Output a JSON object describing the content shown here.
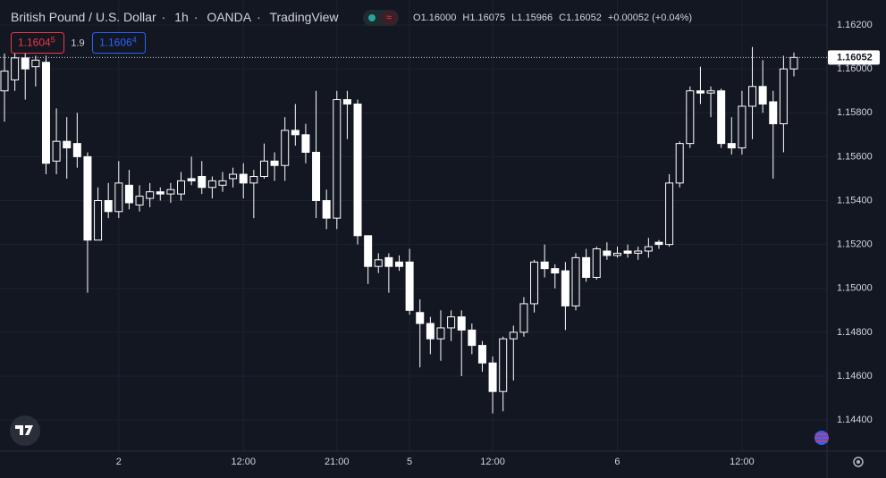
{
  "chart_data": {
    "type": "candlestick",
    "title": "British Pound / U.S. Dollar",
    "interval": "1h",
    "exchange": "OANDA",
    "source": "TradingView",
    "legend": {
      "o_prefix": "O",
      "o": "1.16000",
      "h_prefix": "H",
      "h": "1.16075",
      "l_prefix": "L",
      "l": "1.15966",
      "c_prefix": "C",
      "c": "1.16052",
      "change": "+0.00052 (+0.04%)"
    },
    "sell": {
      "main": "1.1604",
      "pip": "5"
    },
    "spread": "1.9",
    "buy": {
      "main": "1.1606",
      "pip": "4"
    },
    "last_price": {
      "value": 1.16052,
      "label": "1.16052"
    },
    "up_fill": "#131722",
    "down_fill": "#ffffff",
    "border_color": "#ffffff",
    "grid": true,
    "ylim": [
      1.14258,
      1.16314
    ],
    "yticks": [
      {
        "value": 1.144,
        "label": "1.14400"
      },
      {
        "value": 1.146,
        "label": "1.14600"
      },
      {
        "value": 1.148,
        "label": "1.14800"
      },
      {
        "value": 1.15,
        "label": "1.15000"
      },
      {
        "value": 1.152,
        "label": "1.15200"
      },
      {
        "value": 1.154,
        "label": "1.15400"
      },
      {
        "value": 1.156,
        "label": "1.15600"
      },
      {
        "value": 1.158,
        "label": "1.15800"
      },
      {
        "value": 1.16,
        "label": "1.16000"
      },
      {
        "value": 1.162,
        "label": "1.16200"
      }
    ],
    "xticks": [
      {
        "value": 11,
        "label": "2"
      },
      {
        "value": 23,
        "label": "12:00"
      },
      {
        "value": 32,
        "label": "21:00"
      },
      {
        "value": 39,
        "label": "5"
      },
      {
        "value": 47,
        "label": "12:00"
      },
      {
        "value": 59,
        "label": "6"
      },
      {
        "value": 71,
        "label": "12:00"
      }
    ],
    "open": [
      1.159,
      1.1595,
      1.1605,
      1.1601,
      1.1603,
      1.1558,
      1.1567,
      1.1566,
      1.156,
      1.1522,
      1.154,
      1.1535,
      1.1547,
      1.1538,
      1.1541,
      1.1544,
      1.1543,
      1.1543,
      1.155,
      1.1551,
      1.1546,
      1.1547,
      1.155,
      1.1552,
      1.1548,
      1.1551,
      1.1558,
      1.1556,
      1.1572,
      1.157,
      1.1562,
      1.154,
      1.1532,
      1.1586,
      1.1584,
      1.1524,
      1.151,
      1.1514,
      1.1512,
      1.1512,
      1.1489,
      1.1484,
      1.1477,
      1.1482,
      1.1487,
      1.1481,
      1.1474,
      1.1466,
      1.1453,
      1.1477,
      1.148,
      1.1493,
      1.1512,
      1.1509,
      1.1508,
      1.1492,
      1.1514,
      1.1505,
      1.1517,
      1.1515,
      1.1517,
      1.1516,
      1.1517,
      1.1521,
      1.152,
      1.1548,
      1.1566,
      1.159,
      1.1589,
      1.159,
      1.1566,
      1.1564,
      1.1583,
      1.1592,
      1.1585,
      1.1575,
      1.16
    ],
    "high": [
      1.1607,
      1.161,
      1.1609,
      1.1606,
      1.1606,
      1.1582,
      1.1578,
      1.158,
      1.1562,
      1.1546,
      1.1548,
      1.1558,
      1.1554,
      1.1547,
      1.1548,
      1.1546,
      1.1548,
      1.1553,
      1.156,
      1.1558,
      1.1551,
      1.1553,
      1.1555,
      1.1557,
      1.1554,
      1.1566,
      1.1562,
      1.1578,
      1.1584,
      1.1575,
      1.159,
      1.1545,
      1.159,
      1.159,
      1.1586,
      1.1524,
      1.1516,
      1.1516,
      1.1515,
      1.1518,
      1.1495,
      1.1487,
      1.149,
      1.149,
      1.149,
      1.1484,
      1.1476,
      1.1469,
      1.1478,
      1.1483,
      1.1496,
      1.1513,
      1.152,
      1.1511,
      1.1512,
      1.1516,
      1.1518,
      1.1519,
      1.1521,
      1.1519,
      1.152,
      1.1519,
      1.1523,
      1.1522,
      1.1552,
      1.1567,
      1.1592,
      1.1601,
      1.1592,
      1.1591,
      1.1578,
      1.159,
      1.161,
      1.1604,
      1.159,
      1.1606,
      1.16075
    ],
    "low": [
      1.1576,
      1.159,
      1.1586,
      1.1592,
      1.1552,
      1.1552,
      1.155,
      1.1555,
      1.1498,
      1.1522,
      1.1532,
      1.1532,
      1.1536,
      1.1535,
      1.1537,
      1.154,
      1.1539,
      1.154,
      1.1547,
      1.1543,
      1.1541,
      1.1544,
      1.1546,
      1.1541,
      1.1532,
      1.155,
      1.1549,
      1.1549,
      1.1565,
      1.1557,
      1.1532,
      1.1527,
      1.1527,
      1.1568,
      1.152,
      1.1502,
      1.1507,
      1.1498,
      1.1508,
      1.1488,
      1.1464,
      1.147,
      1.1467,
      1.1476,
      1.146,
      1.147,
      1.1462,
      1.1443,
      1.1444,
      1.1458,
      1.1478,
      1.1489,
      1.1505,
      1.15,
      1.1481,
      1.149,
      1.1503,
      1.1504,
      1.1513,
      1.1514,
      1.1514,
      1.1513,
      1.1514,
      1.1518,
      1.1519,
      1.1546,
      1.1564,
      1.1584,
      1.1578,
      1.1564,
      1.1561,
      1.1561,
      1.1568,
      1.158,
      1.155,
      1.1562,
      1.15966
    ],
    "close": [
      1.1599,
      1.1605,
      1.16,
      1.1604,
      1.1557,
      1.1567,
      1.1564,
      1.156,
      1.1522,
      1.154,
      1.1535,
      1.1548,
      1.1539,
      1.1542,
      1.1544,
      1.1543,
      1.1545,
      1.1549,
      1.1549,
      1.1546,
      1.1549,
      1.1549,
      1.1552,
      1.1548,
      1.1551,
      1.1558,
      1.1556,
      1.1572,
      1.157,
      1.1562,
      1.154,
      1.1532,
      1.1586,
      1.1584,
      1.1524,
      1.151,
      1.1513,
      1.151,
      1.151,
      1.149,
      1.1484,
      1.1477,
      1.1482,
      1.1487,
      1.1481,
      1.1474,
      1.1466,
      1.1453,
      1.1477,
      1.148,
      1.1493,
      1.1512,
      1.1509,
      1.1507,
      1.1492,
      1.1514,
      1.1505,
      1.1518,
      1.1515,
      1.1516,
      1.1516,
      1.1517,
      1.1519,
      1.152,
      1.1548,
      1.1566,
      1.159,
      1.1589,
      1.159,
      1.1566,
      1.1564,
      1.1583,
      1.1592,
      1.1584,
      1.1575,
      1.16,
      1.16052
    ]
  }
}
